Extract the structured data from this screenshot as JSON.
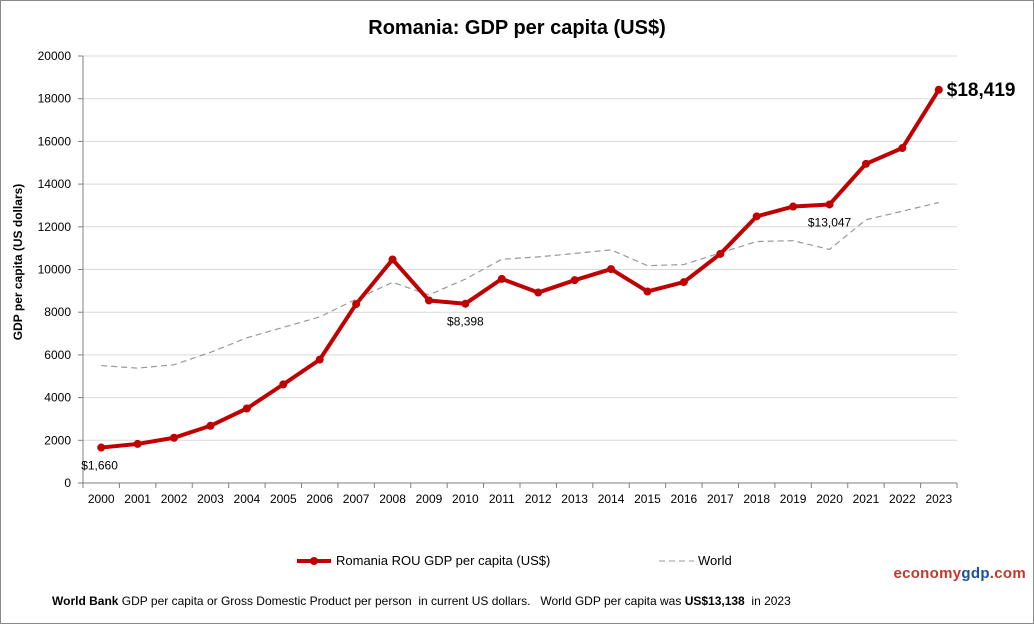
{
  "chart_data": {
    "type": "line",
    "title": "Romania: GDP per capita (US$)",
    "ylabel": "GDP per capita (US dollars)",
    "xlabel": "",
    "ylim": [
      0,
      20000
    ],
    "yticks": [
      "0",
      "2000",
      "4000",
      "6000",
      "8000",
      "10000",
      "12000",
      "14000",
      "16000",
      "18000",
      "20000"
    ],
    "categories": [
      "2000",
      "2001",
      "2002",
      "2003",
      "2004",
      "2005",
      "2006",
      "2007",
      "2008",
      "2009",
      "2010",
      "2011",
      "2012",
      "2013",
      "2014",
      "2015",
      "2016",
      "2017",
      "2018",
      "2019",
      "2020",
      "2021",
      "2022",
      "2023"
    ],
    "grid": true,
    "legend_position": "bottom",
    "series": [
      {
        "name": "Romania ROU GDP per capita (US$)",
        "color": "#c00000",
        "values": [
          1660,
          1830,
          2120,
          2680,
          3490,
          4620,
          5780,
          8380,
          10470,
          8550,
          8398,
          9560,
          8920,
          9500,
          10020,
          8970,
          9410,
          10730,
          12490,
          12950,
          13047,
          14950,
          15690,
          18419
        ]
      },
      {
        "name": "World",
        "color": "#999999",
        "dashed": true,
        "values": [
          5500,
          5380,
          5540,
          6120,
          6800,
          7290,
          7780,
          8610,
          9400,
          8810,
          9550,
          10480,
          10590,
          10750,
          10920,
          10180,
          10230,
          10780,
          11310,
          11350,
          10940,
          12330,
          12730,
          13138
        ]
      }
    ],
    "annotations": [
      {
        "index": 0,
        "text": "$1,660"
      },
      {
        "index": 10,
        "text": "$8,398"
      },
      {
        "index": 20,
        "text": "$13,047"
      },
      {
        "index": 23,
        "text": "$18,419"
      }
    ]
  },
  "footer": {
    "source_bold": "World Bank",
    "text": " GDP per capita or Gross Domestic Product per person  in current US dollars.   World GDP per capita was ",
    "world_value": "US$13,138",
    "tail": "  in 2023"
  },
  "brand": {
    "part1": "economy",
    "part2": "gdp",
    "part3": ".com"
  }
}
